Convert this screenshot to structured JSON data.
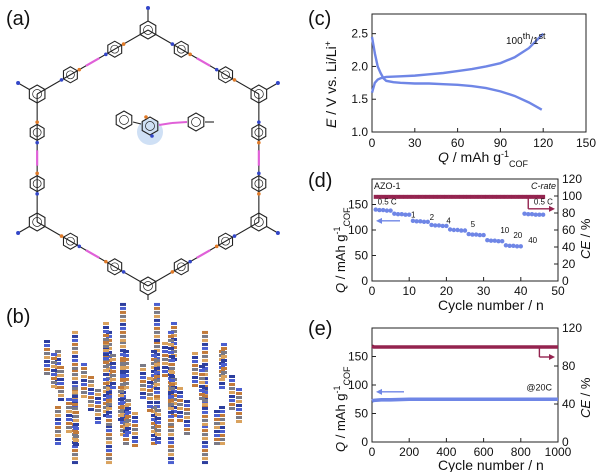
{
  "figure": {
    "panel_labels": {
      "a": "(a)",
      "b": "(b)",
      "c": "(c)",
      "d": "(d)",
      "e": "(e)"
    }
  },
  "colors": {
    "blue": "#6f86e6",
    "maroon": "#94234f",
    "azo": "#e060d8",
    "hex_highlight": "#cfe0f5",
    "atom_blue": "#3346c8",
    "atom_orange": "#e07a28"
  },
  "chart_data": [
    {
      "panel": "c",
      "type": "line",
      "xlabel": "Q / mAh g",
      "xlabel_sup": "-1",
      "xlabel_sub": "COF",
      "ylabel": "E / V vs. Li/Li",
      "ylabel_sup": "+",
      "xlim": [
        0,
        150
      ],
      "ylim": [
        1.0,
        2.8
      ],
      "xticks": [
        0,
        30,
        60,
        90,
        120,
        150
      ],
      "yticks": [
        1.0,
        1.5,
        2.0,
        2.5
      ],
      "annotation": {
        "text": "100th/1st",
        "base": "100",
        "sup1": "th",
        "sep": "/1",
        "sup2": "st"
      },
      "grid": false,
      "series": [
        {
          "color": "#6f86e6",
          "x": [
            0,
            2,
            4,
            6,
            8,
            10,
            15,
            20,
            30,
            40,
            50,
            60,
            70,
            80,
            90,
            100,
            110,
            119
          ],
          "y": [
            2.45,
            2.2,
            2.0,
            1.9,
            1.82,
            1.78,
            1.76,
            1.75,
            1.74,
            1.74,
            1.73,
            1.72,
            1.7,
            1.67,
            1.62,
            1.55,
            1.45,
            1.34
          ]
        },
        {
          "color": "#6f86e6",
          "x": [
            0,
            2,
            4,
            6,
            8,
            10,
            20,
            30,
            40,
            50,
            60,
            70,
            80,
            90,
            100,
            110,
            120
          ],
          "y": [
            1.6,
            1.75,
            1.8,
            1.82,
            1.83,
            1.84,
            1.85,
            1.86,
            1.88,
            1.9,
            1.93,
            1.96,
            2.0,
            2.05,
            2.14,
            2.28,
            2.5
          ]
        }
      ]
    },
    {
      "panel": "d",
      "type": "scatter",
      "xlabel": "Cycle number / n",
      "ylabel_left": "Q / mAh g",
      "ylabel_left_sup": "-1",
      "ylabel_left_sub": "COF",
      "ylabel_right": "CE / %",
      "xlim": [
        0,
        50
      ],
      "ylim_left": [
        0,
        200
      ],
      "ylim_right": [
        0,
        120
      ],
      "xticks": [
        0,
        10,
        20,
        30,
        40,
        50
      ],
      "yticks_left": [
        0,
        50,
        100,
        150
      ],
      "yticks_right": [
        0,
        20,
        40,
        60,
        80,
        100,
        120
      ],
      "corner_labels": {
        "left": "AZO-1",
        "right": "C-rate"
      },
      "rate_labels": [
        "0.5 C",
        "1",
        "2",
        "4",
        "5",
        "10",
        "20",
        "40",
        "0.5 C"
      ],
      "series": [
        {
          "name": "",
          "axis": "left",
          "color": "#6f86e6",
          "x": [
            1,
            2,
            3,
            4,
            5,
            6,
            7,
            8,
            9,
            10,
            11,
            12,
            13,
            14,
            15,
            16,
            17,
            18,
            19,
            20,
            21,
            22,
            23,
            24,
            25,
            26,
            27,
            28,
            29,
            30,
            31,
            32,
            33,
            34,
            35,
            36,
            37,
            38,
            39,
            40,
            41,
            42,
            43,
            44,
            45,
            46
          ],
          "y": [
            140,
            139,
            139,
            138,
            138,
            132,
            131,
            131,
            130,
            130,
            118,
            117,
            117,
            116,
            116,
            110,
            109,
            109,
            108,
            108,
            101,
            100,
            100,
            99,
            99,
            92,
            91,
            91,
            90,
            90,
            80,
            79,
            79,
            78,
            78,
            70,
            69,
            69,
            68,
            68,
            132,
            131,
            131,
            130,
            130,
            130
          ]
        },
        {
          "name": "",
          "axis": "right",
          "color": "#94234f",
          "x": [
            1,
            2,
            3,
            4,
            5,
            6,
            7,
            8,
            9,
            10,
            11,
            12,
            13,
            14,
            15,
            16,
            17,
            18,
            19,
            20,
            21,
            22,
            23,
            24,
            25,
            26,
            27,
            28,
            29,
            30,
            31,
            32,
            33,
            34,
            35,
            36,
            37,
            38,
            39,
            40,
            41,
            42,
            43,
            44,
            45,
            46
          ],
          "y": [
            99,
            99,
            99,
            99,
            99,
            99,
            99,
            99,
            99,
            99,
            99,
            99,
            99,
            99,
            99,
            99,
            99,
            99,
            99,
            99,
            99,
            99,
            99,
            99,
            99,
            99,
            99,
            99,
            99,
            99,
            99,
            99,
            99,
            99,
            99,
            99,
            99,
            99,
            99,
            99,
            99,
            99,
            99,
            99,
            99,
            99
          ]
        }
      ]
    },
    {
      "panel": "e",
      "type": "line",
      "xlabel": "Cycle number / n",
      "ylabel_left": "Q / mAh g",
      "ylabel_left_sup": "-1",
      "ylabel_left_sub": "COF",
      "ylabel_right": "CE / %",
      "xlim": [
        0,
        1000
      ],
      "ylim_left": [
        0,
        200
      ],
      "ylim_right": [
        0,
        120
      ],
      "xticks": [
        0,
        200,
        400,
        600,
        800,
        1000
      ],
      "yticks_left": [
        0,
        50,
        100,
        150
      ],
      "yticks_right": [
        0,
        40,
        80,
        120
      ],
      "annotation": "@20C",
      "series": [
        {
          "name": "",
          "axis": "left",
          "color": "#6f86e6",
          "x": [
            0,
            10,
            50,
            100,
            200,
            300,
            400,
            500,
            600,
            700,
            800,
            900,
            1000
          ],
          "y": [
            72,
            73,
            74,
            74,
            75,
            75,
            75,
            75,
            75,
            75,
            75,
            75,
            75
          ]
        },
        {
          "name": "",
          "axis": "right",
          "color": "#94234f",
          "x": [
            0,
            10,
            50,
            100,
            200,
            300,
            400,
            500,
            600,
            700,
            800,
            900,
            1000
          ],
          "y": [
            101,
            100,
            100,
            100,
            100,
            100,
            100,
            100,
            100,
            100,
            100,
            100,
            100
          ]
        }
      ]
    }
  ]
}
